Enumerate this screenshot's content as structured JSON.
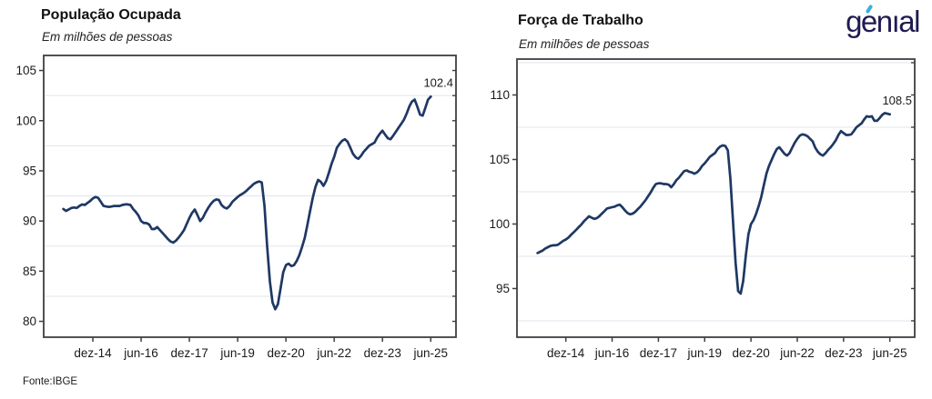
{
  "logo": {
    "text": "genıal",
    "color": "#1f1b52",
    "accent_color": "#3ab0e2"
  },
  "footer": {
    "source": "Fonte:IBGE"
  },
  "chart_data": [
    {
      "type": "line",
      "title": "População Ocupada",
      "subtitle": "Em milhões de pessoas",
      "end_label": "102.4",
      "line_color": "#1f3864",
      "grid_color": "#dfe5ee",
      "axis_color": "#3f3f3f",
      "x_start": "jan-14",
      "x_end": "jun-25",
      "x_frequency": "monthly",
      "xtick_labels": [
        "dez-14",
        "jun-16",
        "dez-17",
        "jun-19",
        "dez-20",
        "jun-22",
        "dez-23",
        "jun-25"
      ],
      "xtick_indices": [
        11,
        29,
        47,
        65,
        83,
        101,
        119,
        137
      ],
      "yticks": [
        80,
        85,
        90,
        95,
        100,
        105
      ],
      "minor_grid_step": 2.5,
      "ylim": [
        78.42,
        106.5
      ],
      "values": [
        91.2,
        91.0,
        91.15,
        91.3,
        91.35,
        91.3,
        91.5,
        91.65,
        91.6,
        91.8,
        92.0,
        92.25,
        92.4,
        92.3,
        91.9,
        91.5,
        91.45,
        91.4,
        91.45,
        91.5,
        91.5,
        91.5,
        91.6,
        91.65,
        91.65,
        91.6,
        91.2,
        90.9,
        90.55,
        90.0,
        89.8,
        89.8,
        89.65,
        89.2,
        89.2,
        89.4,
        89.1,
        88.8,
        88.5,
        88.2,
        87.95,
        87.85,
        88.05,
        88.35,
        88.7,
        89.1,
        89.7,
        90.3,
        90.8,
        91.15,
        90.6,
        90.0,
        90.3,
        90.85,
        91.3,
        91.7,
        92.0,
        92.15,
        92.1,
        91.6,
        91.35,
        91.25,
        91.5,
        91.9,
        92.15,
        92.4,
        92.6,
        92.75,
        92.95,
        93.2,
        93.45,
        93.7,
        93.85,
        93.95,
        93.85,
        91.5,
        87.5,
        84.0,
        81.9,
        81.2,
        81.7,
        83.3,
        84.9,
        85.6,
        85.75,
        85.5,
        85.6,
        86.0,
        86.6,
        87.4,
        88.3,
        89.6,
        91.0,
        92.3,
        93.4,
        94.1,
        93.9,
        93.5,
        94.0,
        94.8,
        95.7,
        96.4,
        97.3,
        97.7,
        98.0,
        98.15,
        97.9,
        97.3,
        96.7,
        96.35,
        96.2,
        96.5,
        96.9,
        97.2,
        97.5,
        97.65,
        97.8,
        98.3,
        98.7,
        99.0,
        98.6,
        98.25,
        98.15,
        98.5,
        98.9,
        99.3,
        99.7,
        100.1,
        100.7,
        101.4,
        101.9,
        102.1,
        101.4,
        100.6,
        100.5,
        101.3,
        102.1,
        102.4
      ]
    },
    {
      "type": "line",
      "title": "Força de Trabalho",
      "subtitle": "Em milhões de pessoas",
      "end_label": "108.5",
      "line_color": "#1f3864",
      "grid_color": "#dfe5ee",
      "axis_color": "#3f3f3f",
      "x_start": "jan-14",
      "x_end": "jun-25",
      "x_frequency": "monthly",
      "xtick_labels": [
        "dez-14",
        "jun-16",
        "dez-17",
        "jun-19",
        "dez-20",
        "jun-22",
        "dez-23",
        "jun-25"
      ],
      "xtick_indices": [
        11,
        29,
        47,
        65,
        83,
        101,
        119,
        137
      ],
      "yticks": [
        95,
        100,
        105,
        110
      ],
      "minor_grid_step": 2.5,
      "ylim": [
        91.23,
        112.78
      ],
      "values": [
        97.75,
        97.85,
        97.95,
        98.1,
        98.2,
        98.3,
        98.35,
        98.35,
        98.4,
        98.55,
        98.7,
        98.8,
        98.95,
        99.15,
        99.35,
        99.55,
        99.75,
        99.95,
        100.2,
        100.4,
        100.6,
        100.5,
        100.4,
        100.45,
        100.6,
        100.8,
        101.0,
        101.2,
        101.25,
        101.3,
        101.35,
        101.45,
        101.5,
        101.3,
        101.05,
        100.85,
        100.75,
        100.8,
        100.95,
        101.15,
        101.35,
        101.6,
        101.85,
        102.15,
        102.45,
        102.8,
        103.1,
        103.15,
        103.15,
        103.1,
        103.1,
        103.05,
        102.85,
        103.1,
        103.4,
        103.6,
        103.85,
        104.1,
        104.15,
        104.05,
        104.0,
        103.9,
        104.0,
        104.2,
        104.5,
        104.7,
        104.95,
        105.2,
        105.35,
        105.5,
        105.8,
        106.0,
        106.1,
        106.05,
        105.7,
        103.5,
        100.3,
        97.0,
        94.8,
        94.6,
        95.6,
        97.6,
        99.2,
        100.0,
        100.3,
        100.8,
        101.4,
        102.1,
        103.0,
        103.9,
        104.5,
        104.95,
        105.4,
        105.8,
        105.95,
        105.7,
        105.45,
        105.3,
        105.5,
        105.9,
        106.3,
        106.6,
        106.85,
        106.95,
        106.9,
        106.8,
        106.6,
        106.4,
        105.9,
        105.6,
        105.4,
        105.3,
        105.5,
        105.75,
        105.95,
        106.2,
        106.5,
        106.9,
        107.2,
        107.05,
        106.9,
        106.9,
        106.95,
        107.2,
        107.5,
        107.65,
        107.8,
        108.1,
        108.35,
        108.3,
        108.35,
        108.0,
        108.0,
        108.2,
        108.45,
        108.6,
        108.55,
        108.5
      ]
    }
  ]
}
